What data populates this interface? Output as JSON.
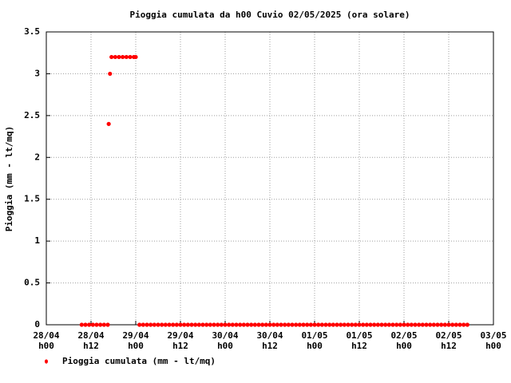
{
  "chart_data": {
    "type": "scatter",
    "title": "Pioggia cumulata da h00 Cuvio 02/05/2025 (ora solare)",
    "ylabel": "Pioggia (mm - lt/mq)",
    "grid": true,
    "legend": "bottom-left",
    "xlim": [
      0,
      120
    ],
    "xticks": [
      {
        "value": 0,
        "label": "28/04\nh00"
      },
      {
        "value": 12,
        "label": "28/04\nh12"
      },
      {
        "value": 24,
        "label": "29/04\nh00"
      },
      {
        "value": 36,
        "label": "29/04\nh12"
      },
      {
        "value": 48,
        "label": "30/04\nh00"
      },
      {
        "value": 60,
        "label": "30/04\nh12"
      },
      {
        "value": 72,
        "label": "01/05\nh00"
      },
      {
        "value": 84,
        "label": "01/05\nh12"
      },
      {
        "value": 96,
        "label": "02/05\nh00"
      },
      {
        "value": 108,
        "label": "02/05\nh12"
      },
      {
        "value": 120,
        "label": "03/05\nh00"
      }
    ],
    "ylim": [
      0,
      3.5
    ],
    "yticks": [
      0,
      0.5,
      1,
      1.5,
      2,
      2.5,
      3,
      3.5
    ],
    "series": [
      {
        "name": "Pioggia cumulata (mm - lt/mq)",
        "color": "#ff0000",
        "x": [
          9.5,
          10.5,
          11.5,
          12.5,
          13.5,
          14.5,
          15.5,
          16.5,
          16.75,
          17.1,
          17.5,
          18.5,
          19.5,
          20.5,
          21.5,
          22.5,
          23.5,
          24,
          25,
          26,
          27,
          28,
          29,
          30,
          31,
          32,
          33,
          34,
          35,
          36,
          37,
          38,
          39,
          40,
          41,
          42,
          43,
          44,
          45,
          46,
          47,
          48,
          49,
          50,
          51,
          52,
          53,
          54,
          55,
          56,
          57,
          58,
          59,
          60,
          61,
          62,
          63,
          64,
          65,
          66,
          67,
          68,
          69,
          70,
          71,
          72,
          73,
          74,
          75,
          76,
          77,
          78,
          79,
          80,
          81,
          82,
          83,
          84,
          85,
          86,
          87,
          88,
          89,
          90,
          91,
          92,
          93,
          94,
          95,
          96,
          97,
          98,
          99,
          100,
          101,
          102,
          103,
          104,
          105,
          106,
          107,
          108,
          109,
          110,
          111,
          112,
          113
        ],
        "values": [
          0,
          0,
          0,
          0,
          0,
          0,
          0,
          0,
          2.4,
          3,
          3.2,
          3.2,
          3.2,
          3.2,
          3.2,
          3.2,
          3.2,
          3.2,
          0,
          0,
          0,
          0,
          0,
          0,
          0,
          0,
          0,
          0,
          0,
          0,
          0,
          0,
          0,
          0,
          0,
          0,
          0,
          0,
          0,
          0,
          0,
          0,
          0,
          0,
          0,
          0,
          0,
          0,
          0,
          0,
          0,
          0,
          0,
          0,
          0,
          0,
          0,
          0,
          0,
          0,
          0,
          0,
          0,
          0,
          0,
          0,
          0,
          0,
          0,
          0,
          0,
          0,
          0,
          0,
          0,
          0,
          0,
          0,
          0,
          0,
          0,
          0,
          0,
          0,
          0,
          0,
          0,
          0,
          0,
          0,
          0,
          0,
          0,
          0,
          0,
          0,
          0,
          0,
          0,
          0,
          0,
          0,
          0,
          0,
          0,
          0,
          0
        ]
      }
    ]
  }
}
